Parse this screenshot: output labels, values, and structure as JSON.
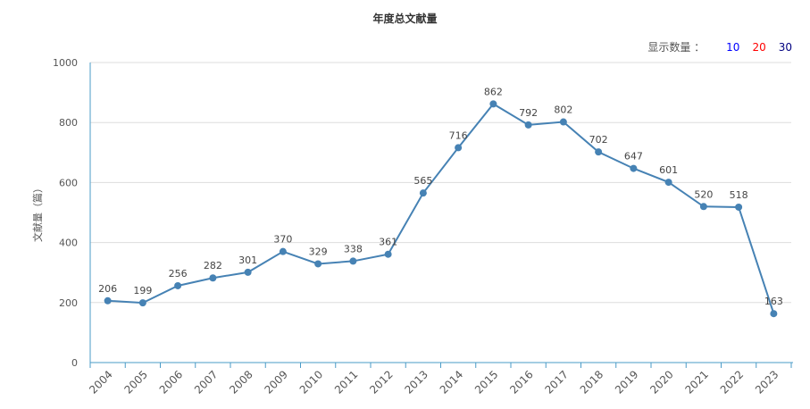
{
  "title": "年度总文献量",
  "controls": {
    "label": "显示数量 ：",
    "options": [
      {
        "label": "10",
        "color": "#0000ff"
      },
      {
        "label": "20",
        "color": "#ff0000"
      },
      {
        "label": "30",
        "color": "#000080"
      }
    ]
  },
  "chart_data": {
    "type": "line",
    "title": "年度总文献量",
    "xlabel": "",
    "ylabel": "文献量（篇）",
    "categories": [
      "2004",
      "2005",
      "2006",
      "2007",
      "2008",
      "2009",
      "2010",
      "2011",
      "2012",
      "2013",
      "2014",
      "2015",
      "2016",
      "2017",
      "2018",
      "2019",
      "2020",
      "2021",
      "2022",
      "2023"
    ],
    "values": [
      206,
      199,
      256,
      282,
      301,
      370,
      329,
      338,
      361,
      565,
      716,
      862,
      792,
      802,
      702,
      647,
      601,
      520,
      518,
      163
    ],
    "ylim": [
      0,
      1000
    ],
    "yticks": [
      0,
      200,
      400,
      600,
      800,
      1000
    ],
    "grid": true,
    "line_color": "#4682b4",
    "axis_color": "#4a9bc7"
  }
}
